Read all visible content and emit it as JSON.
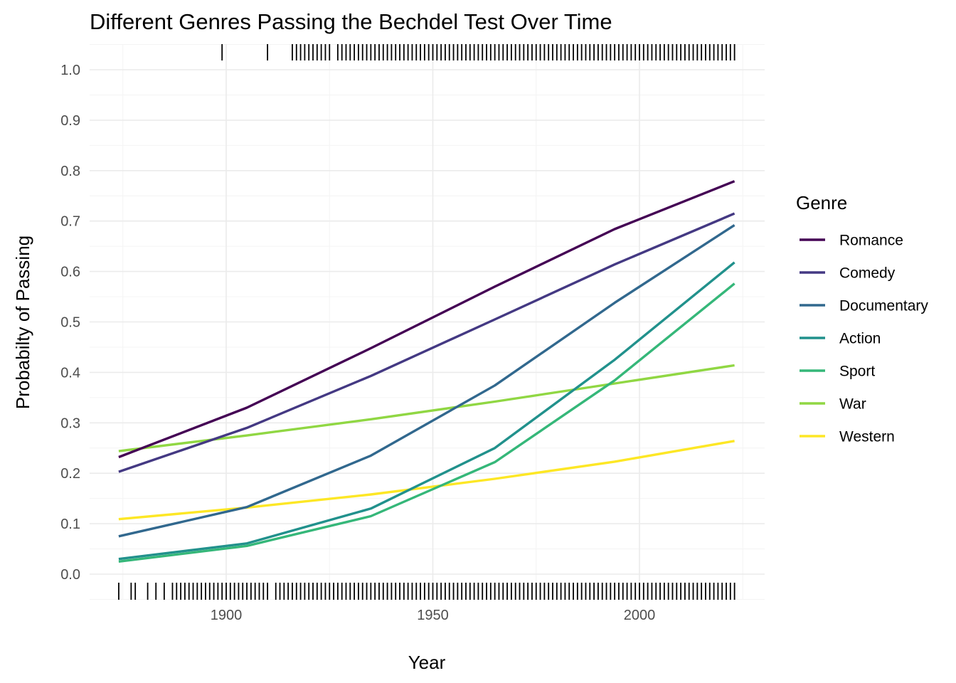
{
  "chart_data": {
    "type": "line",
    "title": "Different Genres Passing the Bechdel Test Over Time",
    "xlabel": "Year",
    "ylabel": "Probabilty of Passing",
    "xlim": [
      1867,
      2030
    ],
    "ylim": [
      -0.05,
      1.05
    ],
    "x_ticks": [
      1900,
      1950,
      2000
    ],
    "y_ticks": [
      0.0,
      0.1,
      0.2,
      0.3,
      0.4,
      0.5,
      0.6,
      0.7,
      0.8,
      0.9,
      1.0
    ],
    "x_tick_labels": [
      "1900",
      "1950",
      "2000"
    ],
    "y_tick_labels": [
      "0.0",
      "0.1",
      "0.2",
      "0.3",
      "0.4",
      "0.5",
      "0.6",
      "0.7",
      "0.8",
      "0.9",
      "1.0"
    ],
    "legend_title": "Genre",
    "legend_position": "right",
    "grid": true,
    "series": [
      {
        "name": "Romance",
        "color": "#440154",
        "x": [
          1874,
          1905,
          1935,
          1965,
          1994,
          2023
        ],
        "y": [
          0.232,
          0.33,
          0.448,
          0.57,
          0.684,
          0.779
        ]
      },
      {
        "name": "Comedy",
        "color": "#443983",
        "x": [
          1874,
          1905,
          1935,
          1965,
          1994,
          2023
        ],
        "y": [
          0.203,
          0.29,
          0.393,
          0.505,
          0.614,
          0.715
        ]
      },
      {
        "name": "Documentary",
        "color": "#31688e",
        "x": [
          1874,
          1905,
          1935,
          1965,
          1994,
          2023
        ],
        "y": [
          0.075,
          0.133,
          0.235,
          0.374,
          0.538,
          0.692
        ]
      },
      {
        "name": "Action",
        "color": "#21918c",
        "x": [
          1874,
          1905,
          1935,
          1965,
          1994,
          2023
        ],
        "y": [
          0.03,
          0.061,
          0.13,
          0.25,
          0.425,
          0.618
        ]
      },
      {
        "name": "Sport",
        "color": "#35b779",
        "x": [
          1874,
          1905,
          1935,
          1965,
          1994,
          2023
        ],
        "y": [
          0.025,
          0.056,
          0.115,
          0.222,
          0.384,
          0.576
        ]
      },
      {
        "name": "War",
        "color": "#90d743",
        "x": [
          1874,
          1905,
          1935,
          1965,
          1994,
          2023
        ],
        "y": [
          0.244,
          0.275,
          0.307,
          0.342,
          0.378,
          0.414
        ]
      },
      {
        "name": "Western",
        "color": "#fde725",
        "x": [
          1874,
          1905,
          1935,
          1965,
          1994,
          2023
        ],
        "y": [
          0.109,
          0.132,
          0.158,
          0.189,
          0.223,
          0.264
        ]
      }
    ],
    "rug_top_years": [
      1899,
      1910,
      1916,
      1917,
      1918,
      1919,
      1920,
      1921,
      1922,
      1923,
      1924,
      1925,
      1927,
      1928,
      1929,
      1930,
      1931,
      1932,
      1933,
      1934,
      1935,
      1936,
      1937,
      1938,
      1939,
      1940,
      1941,
      1942,
      1943,
      1944,
      1945,
      1946,
      1947,
      1948,
      1949,
      1950,
      1951,
      1952,
      1953,
      1954,
      1955,
      1956,
      1957,
      1958,
      1959,
      1960,
      1961,
      1962,
      1963,
      1964,
      1965,
      1966,
      1967,
      1968,
      1969,
      1970,
      1971,
      1972,
      1973,
      1974,
      1975,
      1976,
      1977,
      1978,
      1979,
      1980,
      1981,
      1982,
      1983,
      1984,
      1985,
      1986,
      1987,
      1988,
      1989,
      1990,
      1991,
      1992,
      1993,
      1994,
      1995,
      1996,
      1997,
      1998,
      1999,
      2000,
      2001,
      2002,
      2003,
      2004,
      2005,
      2006,
      2007,
      2008,
      2009,
      2010,
      2011,
      2012,
      2013,
      2014,
      2015,
      2016,
      2017,
      2018,
      2019,
      2020,
      2021,
      2022,
      2023
    ],
    "rug_bottom_years": [
      1874,
      1877,
      1878,
      1881,
      1883,
      1885,
      1887,
      1888,
      1889,
      1890,
      1891,
      1892,
      1893,
      1894,
      1895,
      1896,
      1897,
      1898,
      1899,
      1900,
      1901,
      1902,
      1903,
      1904,
      1905,
      1906,
      1907,
      1908,
      1909,
      1910,
      1912,
      1913,
      1914,
      1915,
      1916,
      1917,
      1918,
      1919,
      1920,
      1921,
      1922,
      1923,
      1924,
      1925,
      1926,
      1927,
      1928,
      1929,
      1930,
      1931,
      1932,
      1933,
      1934,
      1935,
      1936,
      1937,
      1938,
      1939,
      1940,
      1941,
      1942,
      1943,
      1944,
      1945,
      1946,
      1947,
      1948,
      1949,
      1950,
      1951,
      1952,
      1953,
      1954,
      1955,
      1956,
      1957,
      1958,
      1959,
      1960,
      1961,
      1962,
      1963,
      1964,
      1965,
      1966,
      1967,
      1968,
      1969,
      1970,
      1971,
      1972,
      1973,
      1974,
      1975,
      1976,
      1977,
      1978,
      1979,
      1980,
      1981,
      1982,
      1983,
      1984,
      1985,
      1986,
      1987,
      1988,
      1989,
      1990,
      1991,
      1992,
      1993,
      1994,
      1995,
      1996,
      1997,
      1998,
      1999,
      2000,
      2001,
      2002,
      2003,
      2004,
      2005,
      2006,
      2007,
      2008,
      2009,
      2010,
      2011,
      2012,
      2013,
      2014,
      2015,
      2016,
      2017,
      2018,
      2019,
      2020,
      2021,
      2022,
      2023
    ]
  }
}
